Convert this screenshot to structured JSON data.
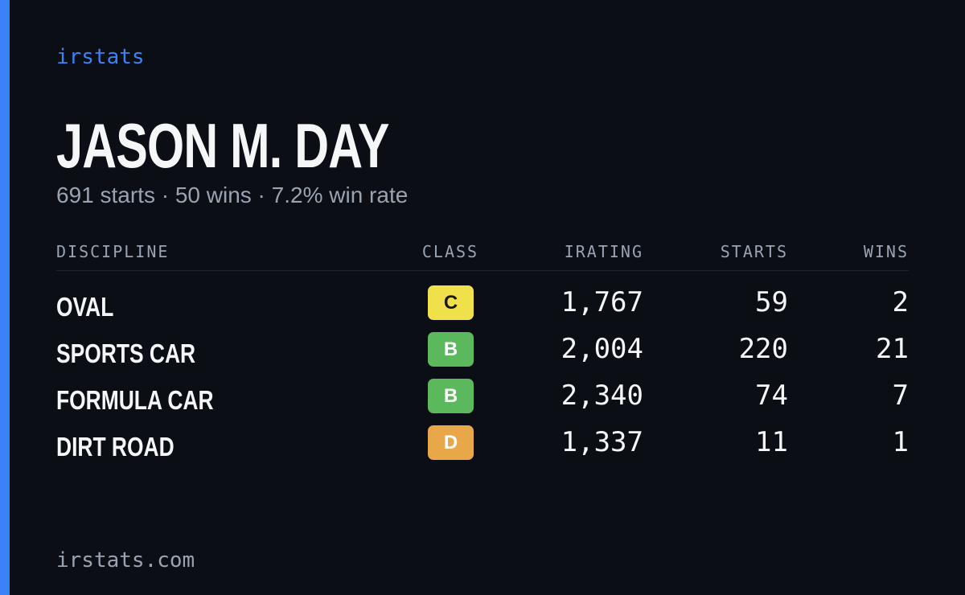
{
  "brand": "irstats",
  "name": "JASON M. DAY",
  "summary": "691 starts · 50 wins · 7.2% win rate",
  "table": {
    "columns": [
      "DISCIPLINE",
      "CLASS",
      "IRATING",
      "STARTS",
      "WINS"
    ],
    "rows": [
      [
        "OVAL",
        "C",
        "1,767",
        "59",
        "2"
      ],
      [
        "SPORTS CAR",
        "B",
        "2,004",
        "220",
        "21"
      ],
      [
        "FORMULA CAR",
        "B",
        "2,340",
        "74",
        "7"
      ],
      [
        "DIRT ROAD",
        "D",
        "1,337",
        "11",
        "1"
      ]
    ]
  },
  "footer": "irstats.com"
}
